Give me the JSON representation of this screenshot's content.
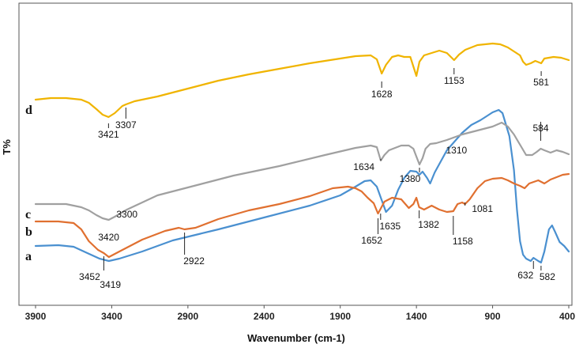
{
  "chart_data": {
    "type": "line",
    "title": "",
    "xlabel": "Wavenumber (cm-1)",
    "ylabel": "T%",
    "xlim": [
      3900,
      400
    ],
    "x_reversed": true,
    "x_ticks": [
      3900,
      3400,
      2900,
      2400,
      1900,
      1400,
      900,
      400
    ],
    "y_ticks_shown": false,
    "grid": false,
    "legend": "none",
    "series": [
      {
        "name": "a",
        "color": "#4a90d0",
        "points": [
          [
            3900,
            311
          ],
          [
            3750,
            310
          ],
          [
            3650,
            312
          ],
          [
            3560,
            320
          ],
          [
            3480,
            327
          ],
          [
            3419,
            330
          ],
          [
            3350,
            327
          ],
          [
            3200,
            318
          ],
          [
            3000,
            304
          ],
          [
            2700,
            290
          ],
          [
            2400,
            275
          ],
          [
            2100,
            260
          ],
          [
            1900,
            247
          ],
          [
            1800,
            236
          ],
          [
            1740,
            229
          ],
          [
            1700,
            228
          ],
          [
            1660,
            236
          ],
          [
            1630,
            252
          ],
          [
            1600,
            268
          ],
          [
            1560,
            260
          ],
          [
            1520,
            240
          ],
          [
            1480,
            225
          ],
          [
            1440,
            216
          ],
          [
            1400,
            217
          ],
          [
            1380,
            221
          ],
          [
            1360,
            217
          ],
          [
            1330,
            225
          ],
          [
            1310,
            232
          ],
          [
            1280,
            218
          ],
          [
            1200,
            190
          ],
          [
            1100,
            168
          ],
          [
            1040,
            158
          ],
          [
            980,
            152
          ],
          [
            940,
            147
          ],
          [
            900,
            142
          ],
          [
            860,
            139
          ],
          [
            835,
            143
          ],
          [
            790,
            172
          ],
          [
            760,
            215
          ],
          [
            740,
            265
          ],
          [
            720,
            305
          ],
          [
            700,
            322
          ],
          [
            680,
            327
          ],
          [
            650,
            330
          ],
          [
            632,
            326
          ],
          [
            600,
            330
          ],
          [
            582,
            332
          ],
          [
            560,
            318
          ],
          [
            530,
            290
          ],
          [
            510,
            285
          ],
          [
            490,
            293
          ],
          [
            460,
            306
          ],
          [
            430,
            311
          ],
          [
            400,
            318
          ]
        ]
      },
      {
        "name": "b",
        "color": "#e07030",
        "points": [
          [
            3900,
            280
          ],
          [
            3750,
            280
          ],
          [
            3650,
            282
          ],
          [
            3600,
            290
          ],
          [
            3550,
            305
          ],
          [
            3490,
            316
          ],
          [
            3452,
            320
          ],
          [
            3419,
            325
          ],
          [
            3350,
            318
          ],
          [
            3200,
            303
          ],
          [
            3050,
            292
          ],
          [
            2960,
            288
          ],
          [
            2922,
            290
          ],
          [
            2850,
            288
          ],
          [
            2700,
            277
          ],
          [
            2500,
            266
          ],
          [
            2300,
            258
          ],
          [
            2100,
            248
          ],
          [
            1950,
            238
          ],
          [
            1850,
            236
          ],
          [
            1800,
            238
          ],
          [
            1760,
            242
          ],
          [
            1720,
            250
          ],
          [
            1680,
            257
          ],
          [
            1652,
            270
          ],
          [
            1635,
            264
          ],
          [
            1610,
            255
          ],
          [
            1560,
            250
          ],
          [
            1500,
            252
          ],
          [
            1450,
            263
          ],
          [
            1420,
            258
          ],
          [
            1400,
            250
          ],
          [
            1382,
            262
          ],
          [
            1350,
            265
          ],
          [
            1300,
            260
          ],
          [
            1250,
            265
          ],
          [
            1200,
            268
          ],
          [
            1158,
            267
          ],
          [
            1130,
            258
          ],
          [
            1100,
            256
          ],
          [
            1081,
            258
          ],
          [
            1050,
            252
          ],
          [
            1000,
            238
          ],
          [
            950,
            229
          ],
          [
            900,
            226
          ],
          [
            840,
            225
          ],
          [
            800,
            228
          ],
          [
            760,
            232
          ],
          [
            720,
            235
          ],
          [
            690,
            238
          ],
          [
            660,
            232
          ],
          [
            630,
            230
          ],
          [
            600,
            228
          ],
          [
            560,
            232
          ],
          [
            520,
            227
          ],
          [
            480,
            224
          ],
          [
            440,
            221
          ],
          [
            400,
            220
          ]
        ]
      },
      {
        "name": "c",
        "color": "#a0a0a0",
        "points": [
          [
            3900,
            258
          ],
          [
            3700,
            258
          ],
          [
            3600,
            262
          ],
          [
            3550,
            266
          ],
          [
            3500,
            272
          ],
          [
            3460,
            276
          ],
          [
            3420,
            278
          ],
          [
            3380,
            274
          ],
          [
            3300,
            265
          ],
          [
            3200,
            256
          ],
          [
            3100,
            247
          ],
          [
            2900,
            237
          ],
          [
            2600,
            222
          ],
          [
            2300,
            210
          ],
          [
            2000,
            196
          ],
          [
            1800,
            187
          ],
          [
            1700,
            184
          ],
          [
            1660,
            186
          ],
          [
            1634,
            203
          ],
          [
            1610,
            196
          ],
          [
            1580,
            190
          ],
          [
            1540,
            187
          ],
          [
            1500,
            184
          ],
          [
            1450,
            184
          ],
          [
            1420,
            188
          ],
          [
            1400,
            198
          ],
          [
            1380,
            208
          ],
          [
            1360,
            200
          ],
          [
            1340,
            188
          ],
          [
            1310,
            182
          ],
          [
            1270,
            181
          ],
          [
            1200,
            177
          ],
          [
            1100,
            170
          ],
          [
            1000,
            165
          ],
          [
            900,
            160
          ],
          [
            840,
            155
          ],
          [
            800,
            160
          ],
          [
            760,
            170
          ],
          [
            720,
            183
          ],
          [
            680,
            196
          ],
          [
            640,
            196
          ],
          [
            610,
            192
          ],
          [
            584,
            188
          ],
          [
            560,
            190
          ],
          [
            520,
            193
          ],
          [
            480,
            190
          ],
          [
            440,
            192
          ],
          [
            400,
            195
          ]
        ]
      },
      {
        "name": "d",
        "color": "#f0b400",
        "points": [
          [
            3900,
            126
          ],
          [
            3800,
            124
          ],
          [
            3700,
            124
          ],
          [
            3600,
            126
          ],
          [
            3550,
            130
          ],
          [
            3500,
            138
          ],
          [
            3460,
            145
          ],
          [
            3421,
            148
          ],
          [
            3380,
            143
          ],
          [
            3330,
            134
          ],
          [
            3307,
            132
          ],
          [
            3250,
            128
          ],
          [
            3100,
            122
          ],
          [
            2900,
            112
          ],
          [
            2700,
            102
          ],
          [
            2500,
            94
          ],
          [
            2300,
            87
          ],
          [
            2100,
            80
          ],
          [
            1900,
            74
          ],
          [
            1800,
            71
          ],
          [
            1700,
            70
          ],
          [
            1660,
            75
          ],
          [
            1628,
            93
          ],
          [
            1600,
            82
          ],
          [
            1560,
            72
          ],
          [
            1520,
            70
          ],
          [
            1480,
            72
          ],
          [
            1440,
            72
          ],
          [
            1400,
            96
          ],
          [
            1380,
            78
          ],
          [
            1350,
            70
          ],
          [
            1300,
            67
          ],
          [
            1250,
            64
          ],
          [
            1200,
            67
          ],
          [
            1153,
            76
          ],
          [
            1120,
            69
          ],
          [
            1080,
            63
          ],
          [
            1000,
            57
          ],
          [
            900,
            55
          ],
          [
            850,
            56
          ],
          [
            800,
            60
          ],
          [
            760,
            65
          ],
          [
            720,
            70
          ],
          [
            700,
            78
          ],
          [
            680,
            82
          ],
          [
            650,
            80
          ],
          [
            620,
            77
          ],
          [
            581,
            80
          ],
          [
            560,
            74
          ],
          [
            500,
            72
          ],
          [
            450,
            73
          ],
          [
            400,
            76
          ]
        ]
      }
    ],
    "annotations": [
      {
        "text": "1628",
        "series": "d",
        "x": 1628
      },
      {
        "text": "1153",
        "series": "d",
        "x": 1153
      },
      {
        "text": "581",
        "series": "d",
        "x": 581
      },
      {
        "text": "3421",
        "series": "d",
        "x": 3421
      },
      {
        "text": "3307",
        "series": "d",
        "x": 3307
      },
      {
        "text": "1634",
        "series": "c",
        "x": 1634
      },
      {
        "text": "1380",
        "series": "c",
        "x": 1380
      },
      {
        "text": "1310",
        "series": "c",
        "x": 1310
      },
      {
        "text": "584",
        "series": "c",
        "x": 584
      },
      {
        "text": "3420",
        "series": "c",
        "x": 3420
      },
      {
        "text": "3300",
        "series": "c",
        "x": 3300
      },
      {
        "text": "1652",
        "series": "b",
        "x": 1652
      },
      {
        "text": "1635",
        "series": "b",
        "x": 1635
      },
      {
        "text": "1382",
        "series": "b",
        "x": 1382
      },
      {
        "text": "1158",
        "series": "b",
        "x": 1158
      },
      {
        "text": "1081",
        "series": "b",
        "x": 1081
      },
      {
        "text": "2922",
        "series": "b",
        "x": 2922
      },
      {
        "text": "3452",
        "series": "b",
        "x": 3452
      },
      {
        "text": "3419",
        "series": "a",
        "x": 3419
      },
      {
        "text": "632",
        "series": "a",
        "x": 632
      },
      {
        "text": "582",
        "series": "a",
        "x": 582
      }
    ],
    "curve_labels": [
      "a",
      "b",
      "c",
      "d"
    ]
  }
}
